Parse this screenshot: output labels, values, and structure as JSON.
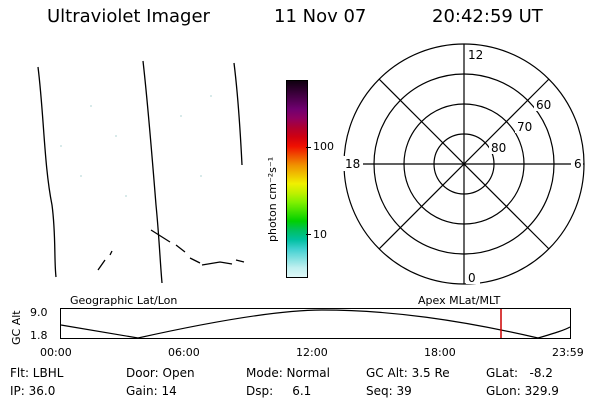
{
  "header": {
    "title": "Ultraviolet Imager",
    "date": "11 Nov 07",
    "time": "20:42:59 UT"
  },
  "colorbar": {
    "label": "photon cm⁻²s⁻¹",
    "tick_labels": [
      "100",
      "10"
    ],
    "tick_values": [
      100,
      10
    ],
    "log_scale": true,
    "colors": [
      "#100010",
      "#300030",
      "#500050",
      "#700070",
      "#900060",
      "#b00030",
      "#d00010",
      "#f01000",
      "#f05000",
      "#f09000",
      "#f0c000",
      "#f0f000",
      "#c0f000",
      "#80f000",
      "#40e000",
      "#00d000",
      "#00c060",
      "#00c0a0",
      "#40d0d0",
      "#80e0e0",
      "#c0f0f0",
      "#e0f8f8"
    ]
  },
  "polar_plot": {
    "mlt_labels": [
      "12",
      "18",
      "6",
      "0"
    ],
    "lat_labels": [
      "60",
      "70",
      "80"
    ]
  },
  "timeline": {
    "left_label": "Geographic Lat/Lon",
    "right_label": "Apex MLat/MLT",
    "y_axis_label": "GC Alt",
    "y_ticks": [
      "9.0",
      "1.8"
    ],
    "x_ticks": [
      "00:00",
      "06:00",
      "12:00",
      "18:00",
      "23:59"
    ],
    "marker_time": "20:43",
    "marker_color": "#cc0000"
  },
  "info": {
    "filter": "Flt: LBHL",
    "door": "Door: Open",
    "mode": "Mode: Normal",
    "gc_alt": "GC Alt: 3.5 Re",
    "glat": "GLat:   -8.2",
    "ip": "IP: 36.0",
    "gain": "Gain: 14",
    "dsp": "Dsp:     6.1",
    "seq": "Seq: 39",
    "glon": "GLon: 329.9"
  }
}
